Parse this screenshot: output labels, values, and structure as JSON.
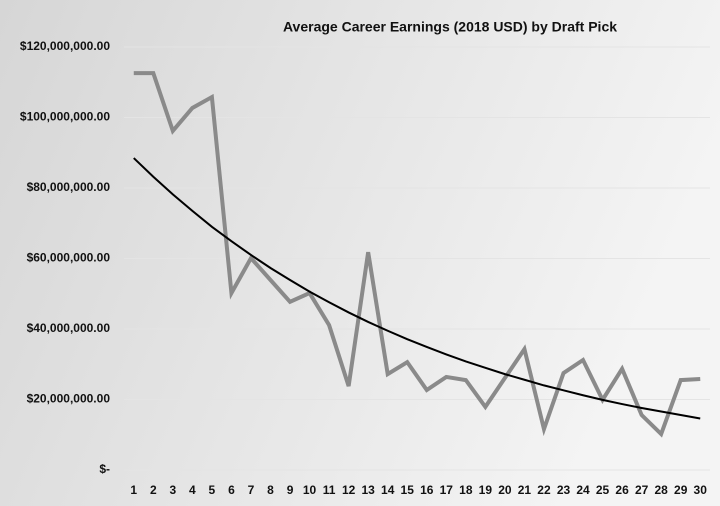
{
  "chart_data": {
    "type": "line",
    "title": "Average Career Earnings (2018 USD) by Draft Pick",
    "categories": [
      "1",
      "2",
      "3",
      "4",
      "5",
      "6",
      "7",
      "8",
      "9",
      "10",
      "11",
      "12",
      "13",
      "14",
      "15",
      "16",
      "17",
      "18",
      "19",
      "20",
      "21",
      "22",
      "23",
      "24",
      "25",
      "26",
      "27",
      "28",
      "29",
      "30"
    ],
    "series": [
      {
        "color": "#8a8a8a",
        "values": [
          112600000,
          112600000,
          96200000,
          102700000,
          105800000,
          50200000,
          60100000,
          53900000,
          47700000,
          50200000,
          41100000,
          23800000,
          61800000,
          27200000,
          30600000,
          22700000,
          26400000,
          25500000,
          17900000,
          26100000,
          34300000,
          11600000,
          27500000,
          31200000,
          19900000,
          28700000,
          15600000,
          10200000,
          25500000,
          25800000
        ]
      },
      {
        "color": "#000000",
        "values": [
          88500000,
          83200000,
          78200000,
          73500000,
          69000000,
          64900000,
          61000000,
          57300000,
          53900000,
          50600000,
          47600000,
          44700000,
          42000000,
          39500000,
          37100000,
          34900000,
          32800000,
          30800000,
          29000000,
          27200000,
          25600000,
          24000000,
          22600000,
          21200000,
          19900000,
          18700000,
          17600000,
          16600000,
          15600000,
          14600000
        ]
      }
    ],
    "ylim": [
      0,
      120000000
    ],
    "yticks": [
      {
        "value": 0,
        "label": "$-"
      },
      {
        "value": 20000000,
        "label": "$20,000,000.00"
      },
      {
        "value": 40000000,
        "label": "$40,000,000.00"
      },
      {
        "value": 60000000,
        "label": "$60,000,000.00"
      },
      {
        "value": 80000000,
        "label": "$80,000,000.00"
      },
      {
        "value": 100000000,
        "label": "$100,000,000.00"
      },
      {
        "value": 120000000,
        "label": "$120,000,000.00"
      }
    ],
    "grid": true
  }
}
